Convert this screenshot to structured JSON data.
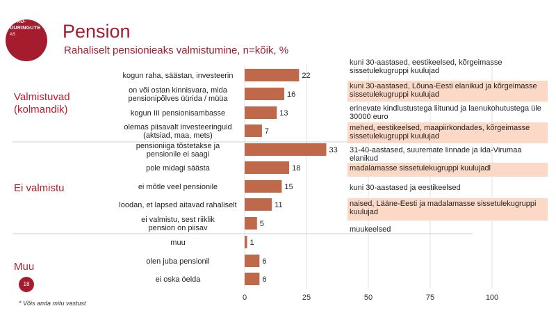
{
  "logo": {
    "line1": "TURU-",
    "line2": "UURINGUTE",
    "line3": "AS"
  },
  "header": {
    "title": "Pension",
    "subtitle": "Rahaliselt pensionieaks valmistumine, n=kõik, %"
  },
  "groups": [
    {
      "label": "Valmistuvad (kolmandik)"
    },
    {
      "label": "Ei valmistu"
    },
    {
      "label": "Muu"
    }
  ],
  "page_number": "18",
  "footnote": "* Võis anda mitu vastust",
  "notes": [
    {
      "text": "kuni 30-aastased, eestikeelsed, kõrgeimasse sissetulekugruppi kuulujad",
      "highlight": false
    },
    {
      "text": "kuni 30-aastased, Lõuna-Eesti elanikud ja kõrgeimasse sissetulekugruppi kuulujad",
      "highlight": true
    },
    {
      "text": "erinevate kindlustustega liitunud ja laenukohutustega üle 30000 euro",
      "highlight": false
    },
    {
      "text": "mehed, eestikeelsed, maapiirkondades, kõrgeimasse sissetulekugruppi kuulujad",
      "highlight": true
    },
    {
      "text": "31-40-aastased, suuremate linnade ja Ida-Virumaa elanikud",
      "highlight": false
    },
    {
      "text": "madalamasse sissetulekugruppi kuulujadl",
      "highlight": true
    },
    {
      "text": "kuni 30-aastased ja eestikeelsed",
      "highlight": false
    },
    {
      "text": "naised, Lääne-Eesti ja madalamasse sissetulekugruppi kuulujad",
      "highlight": true
    },
    {
      "text": "muukeelsed",
      "highlight": false
    }
  ],
  "chart_data": {
    "type": "bar",
    "orientation": "horizontal",
    "categories": [
      "kogun raha, säästan, investeerin",
      "on või ostan kinnisvara, mida pensionipõlves üürida / müüa",
      "kogun III pensionisambasse",
      "olemas piisavalt investeeringuid (aktsiad, maa, mets)",
      "pensioniiga tõstetakse ja pensionile ei saagi",
      "pole midagi säästa",
      "ei mõtle veel pensionile",
      "loodan, et lapsed aitavad rahaliselt",
      "ei valmistu, sest riiklik pension on piisav",
      "muu",
      "olen juba pensionil",
      "ei oska öelda"
    ],
    "values": [
      22,
      16,
      13,
      7,
      33,
      18,
      15,
      11,
      5,
      1,
      6,
      6
    ],
    "xlim": [
      0,
      100
    ],
    "xticks": [
      0,
      25,
      50,
      75,
      100
    ],
    "grid": true,
    "bar_color": "#c0694a"
  }
}
